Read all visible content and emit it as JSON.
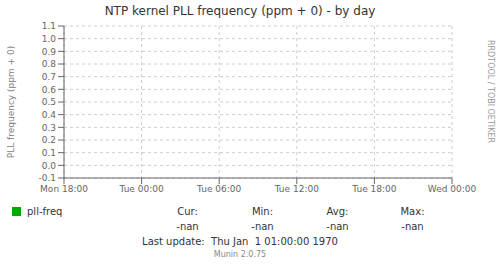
{
  "chart_data": {
    "type": "line",
    "title": "NTP kernel PLL frequency (ppm + 0) - by day",
    "ylabel": "PLL frequency (ppm + 0)",
    "categories": [
      "Mon 18:00",
      "Tue 00:00",
      "Tue 06:00",
      "Tue 12:00",
      "Tue 18:00",
      "Wed 00:00"
    ],
    "series": [
      {
        "name": "pll-freq",
        "color": "#00aa00",
        "values": [
          null,
          null,
          null,
          null,
          null,
          null
        ]
      }
    ],
    "ylim": [
      -0.1,
      1.1
    ],
    "yticks": [
      -0.1,
      {
        "value": 0,
        "label": "0.0"
      },
      0.1,
      0.2,
      0.3,
      0.4,
      0.5,
      0.6,
      0.7,
      0.8,
      0.9,
      {
        "value": 1,
        "label": "1.0"
      },
      1.1
    ],
    "grid": true,
    "annotations": [
      [
        "Cur:",
        "Min:",
        "Avg:",
        "Max:"
      ],
      [
        "-nan",
        "-nan",
        "-nan",
        "-nan"
      ],
      [
        "Last update:  Thu Jan  1 01:00:00 1970"
      ],
      [
        "Munin 2.0.75"
      ],
      [
        "RRDTOOL / TOBI OETIKER"
      ]
    ]
  }
}
